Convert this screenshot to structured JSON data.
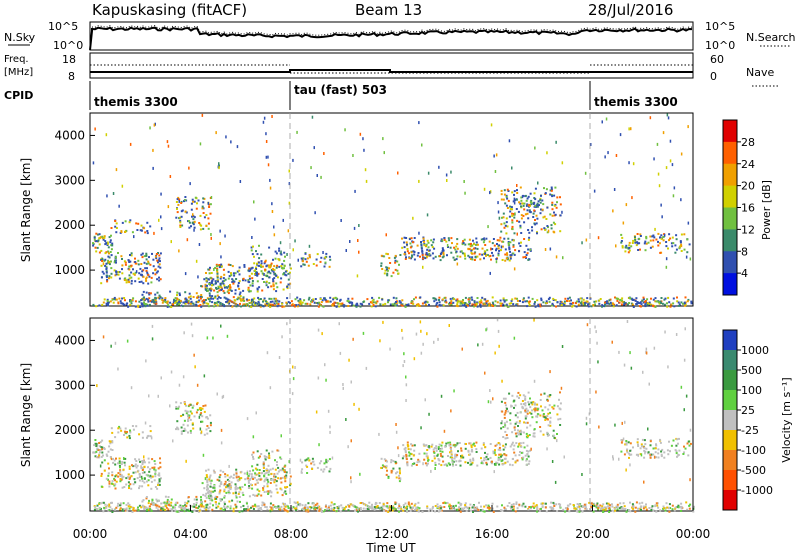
{
  "header": {
    "station": "Kapuskasing (fitACF)",
    "beam": "Beam 13",
    "date": "28/Jul/2016"
  },
  "chart_data": {
    "type": "heatmap",
    "x_ticks": [
      "00:00",
      "04:00",
      "08:00",
      "12:00",
      "16:00",
      "20:00",
      "00:00"
    ],
    "x_label": "Time UT",
    "y_label": "Slant Range [km]",
    "y_ticks": [
      1000,
      2000,
      3000,
      4000
    ],
    "y_range": [
      200,
      4500
    ],
    "noise_panel": {
      "left_label": "N.Sky",
      "left_ticks": [
        "10^5",
        "10^0"
      ],
      "right_label": "N.Search",
      "right_ticks": [
        "10^5",
        "10^0"
      ]
    },
    "freq_panel": {
      "left_label_line1": "Freq.",
      "left_label_line2": "[MHz]",
      "left_ticks": [
        "18",
        "8"
      ],
      "right_label": "Nave",
      "right_ticks": [
        "60",
        "0"
      ]
    },
    "cpid": {
      "label": "CPID",
      "segments": [
        "themis 3300",
        "tau (fast) 503",
        "themis 3300"
      ]
    },
    "power_scale": {
      "title": "Power [dB]",
      "labels": [
        "28",
        "24",
        "20",
        "16",
        "12",
        "8",
        "4"
      ],
      "colors": [
        "#e00000",
        "#ff6000",
        "#f0a000",
        "#d0d000",
        "#70c040",
        "#3a8a6a",
        "#3050b0",
        "#0010e0"
      ]
    },
    "velocity_scale": {
      "title": "Velocity [m s⁻¹]",
      "labels": [
        "1000",
        "500",
        "100",
        "25",
        "-25",
        "-100",
        "-500",
        "-1000"
      ],
      "colors": [
        "#2040c0",
        "#3a8a70",
        "#3a9a40",
        "#60d040",
        "#c0c0c0",
        "#f0c000",
        "#f08020",
        "#ff5000",
        "#e00000"
      ]
    }
  }
}
